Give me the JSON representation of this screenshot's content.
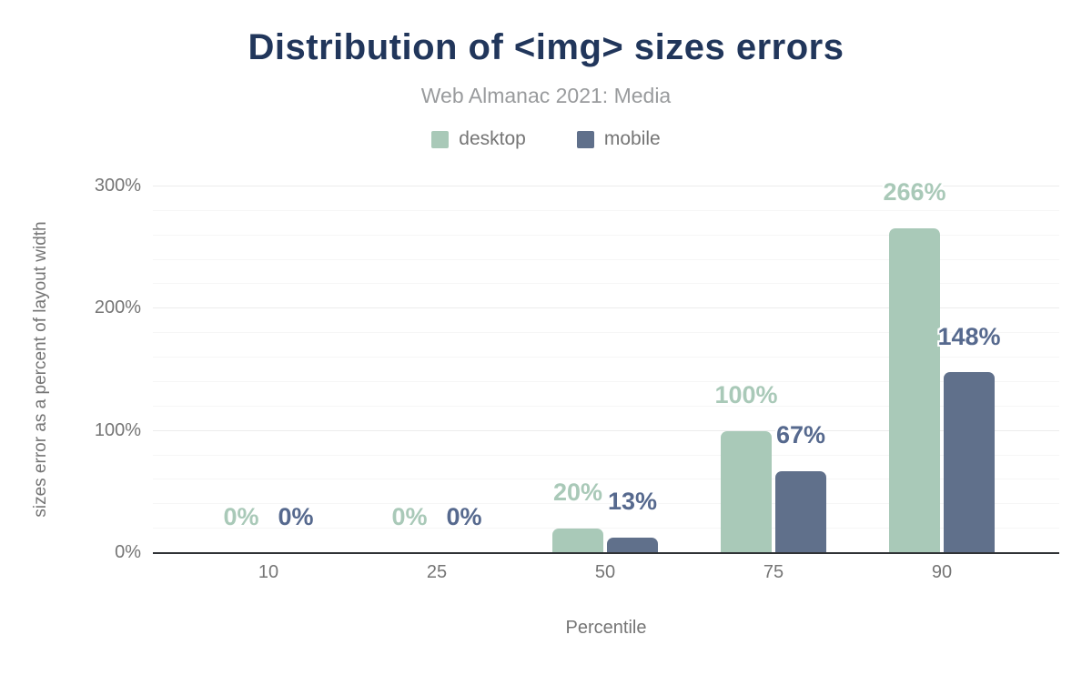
{
  "header": {
    "title": "Distribution of <img> sizes errors",
    "subtitle": "Web Almanac 2021: Media"
  },
  "colors": {
    "title": "#21365b",
    "subtitle": "#999b9d",
    "axis_text": "#757575",
    "axis_line": "#303336",
    "grid_major": "#ececec",
    "grid_minor": "#f6f6f6",
    "desktop": "#a9c9b8",
    "mobile": "#60708b",
    "desktop_label": "#a9c9b8",
    "mobile_label": "#56698e"
  },
  "chart_data": {
    "type": "bar",
    "title": "Distribution of <img> sizes errors",
    "subtitle": "Web Almanac 2021: Media",
    "categories": [
      "10",
      "25",
      "50",
      "75",
      "90"
    ],
    "series": [
      {
        "name": "desktop",
        "color": "#a9c9b8",
        "label_color": "#a9c9b8",
        "values": [
          0,
          0,
          20,
          100,
          266
        ]
      },
      {
        "name": "mobile",
        "color": "#60708b",
        "label_color": "#56698e",
        "values": [
          0,
          0,
          13,
          67,
          148
        ]
      }
    ],
    "value_suffix": "%",
    "xlabel": "Percentile",
    "ylabel": "sizes error as a percent of layout width",
    "ylim": [
      0,
      300
    ],
    "yticks": [
      0,
      100,
      200,
      300
    ],
    "ytick_labels": [
      "0%",
      "100%",
      "200%",
      "300%"
    ],
    "minor_grid_step": 20,
    "grid": true,
    "legend_position": "top",
    "data_labels": true
  }
}
